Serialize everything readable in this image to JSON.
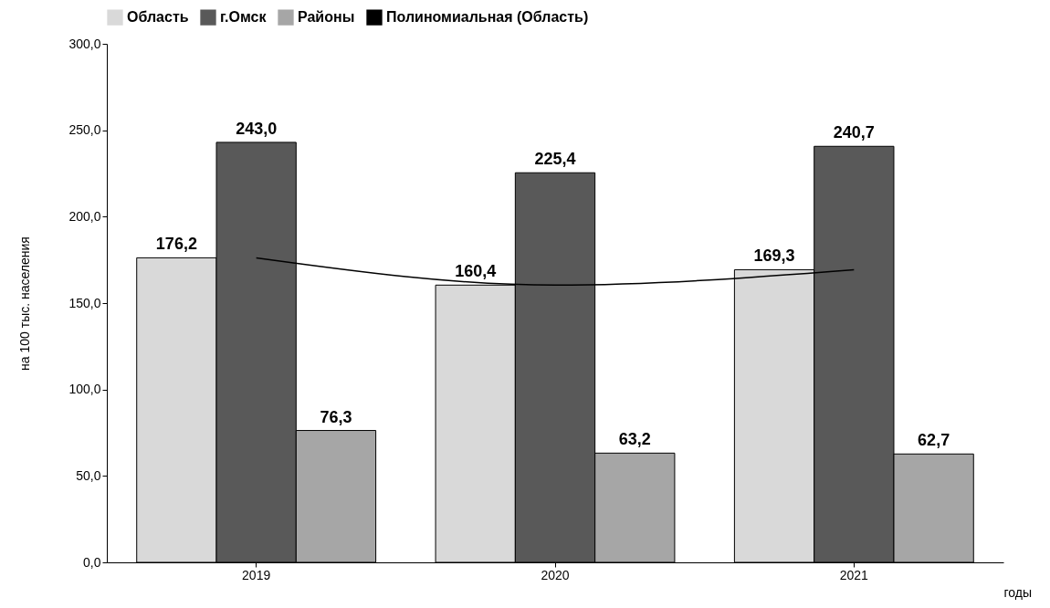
{
  "chart_data": {
    "type": "bar",
    "categories": [
      "2019",
      "2020",
      "2021"
    ],
    "xlabel": "годы",
    "ylabel": "на 100 тыс. населения",
    "series": [
      {
        "name": "Область",
        "color": "#d9d9d9",
        "values": [
          176.2,
          160.4,
          169.3
        ],
        "value_labels": [
          "176,2",
          "160,4",
          "169,3"
        ]
      },
      {
        "name": "г.Омск",
        "color": "#595959",
        "values": [
          243.0,
          225.4,
          240.7
        ],
        "value_labels": [
          "243,0",
          "225,4",
          "240,7"
        ]
      },
      {
        "name": "Районы",
        "color": "#a6a6a6",
        "values": [
          76.3,
          63.2,
          62.7
        ],
        "value_labels": [
          "76,3",
          "63,2",
          "62,7"
        ]
      },
      {
        "name": "Полиномиальная (Область)",
        "type": "line",
        "color": "#000000",
        "values": [
          176.2,
          160.4,
          169.3
        ]
      }
    ],
    "ylim": [
      0,
      300
    ],
    "yticks": [
      {
        "value": 0,
        "label": "0,0"
      },
      {
        "value": 50,
        "label": "50,0"
      },
      {
        "value": 100,
        "label": "100,0"
      },
      {
        "value": 150,
        "label": "150,0"
      },
      {
        "value": 200,
        "label": "200,0"
      },
      {
        "value": 250,
        "label": "250,0"
      },
      {
        "value": 300,
        "label": "300,0"
      }
    ],
    "legend": "top",
    "grid": false,
    "marker": "none"
  }
}
